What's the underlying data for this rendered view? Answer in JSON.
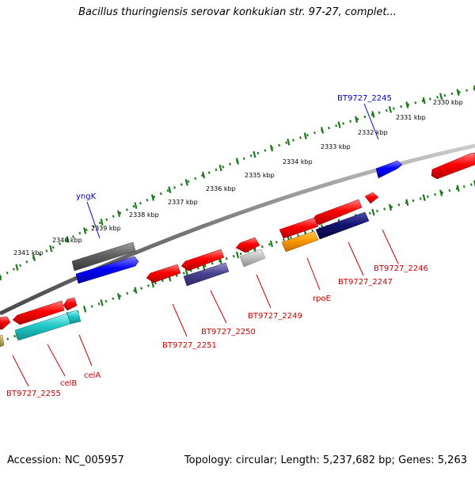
{
  "title": "Bacillus thuringiensis serovar konkukian str. 97-27, complet...",
  "footer": {
    "accession": "Accession: NC_005957",
    "summary": "Topology: circular; Length: 5,237,682 bp; Genes: 5,263"
  },
  "colors": {
    "ruler": "#1a7a1a",
    "backbone": "#777777",
    "forward_label": "#0000cc",
    "reverse_label": "#cc0000"
  },
  "ruler_labels": [
    "2330 kbp",
    "2331 kbp",
    "2332 kbp",
    "2333 kbp",
    "2334 kbp",
    "2335 kbp",
    "2336 kbp",
    "2337 kbp",
    "2338 kbp",
    "2339 kbp",
    "2340 kbp",
    "2341 kbp"
  ],
  "forward_labels": [
    "BT9727_2245",
    "yngK"
  ],
  "reverse_labels": [
    "BT9727_2246",
    "BT9727_2247",
    "rpoE",
    "BT9727_2249",
    "BT9727_2250",
    "BT9727_2251",
    "celA",
    "celB",
    "BT9727_2255"
  ]
}
